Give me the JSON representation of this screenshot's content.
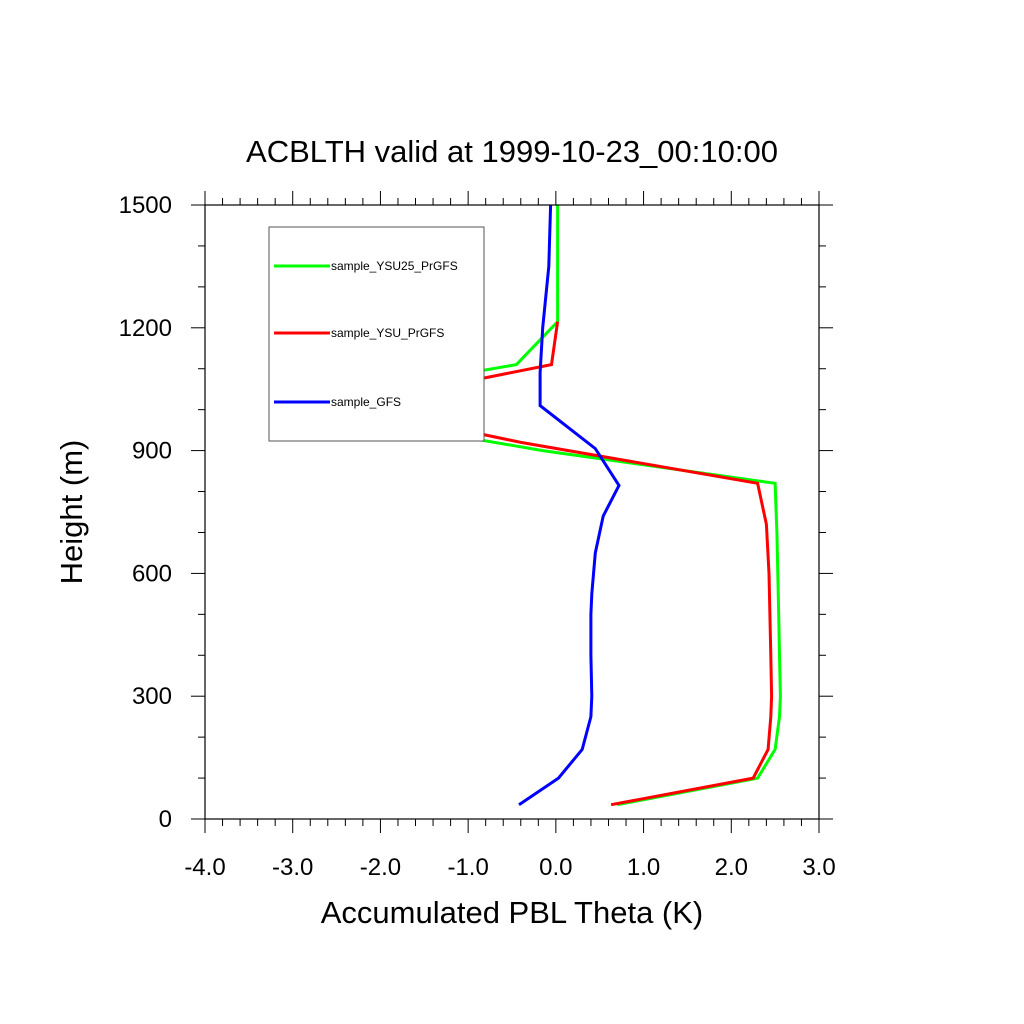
{
  "chart_data": {
    "type": "line",
    "title": "ACBLTH valid at 1999-10-23_00:10:00",
    "xlabel": "Accumulated PBL Theta (K)",
    "ylabel": "Height (m)",
    "xlim": [
      -4.0,
      3.0
    ],
    "ylim": [
      0,
      1500
    ],
    "xticks": [
      -4.0,
      -3.0,
      -2.0,
      -1.0,
      0.0,
      1.0,
      2.0,
      3.0
    ],
    "xtick_labels": [
      "-4.0",
      "-3.0",
      "-2.0",
      "-1.0",
      "0.0",
      "1.0",
      "2.0",
      "3.0"
    ],
    "yticks": [
      0,
      300,
      600,
      900,
      1200,
      1500
    ],
    "ytick_labels": [
      "0",
      "300",
      "600",
      "900",
      "1200",
      "1500"
    ],
    "grid": false,
    "legend": "top-left",
    "series": [
      {
        "name": "sample_YSU25_PrGFS",
        "color": "#00ff00",
        "points": [
          [
            0.7,
            35
          ],
          [
            2.3,
            100
          ],
          [
            2.5,
            170
          ],
          [
            2.55,
            250
          ],
          [
            2.56,
            300
          ],
          [
            2.55,
            400
          ],
          [
            2.54,
            500
          ],
          [
            2.53,
            600
          ],
          [
            2.52,
            700
          ],
          [
            2.5,
            820
          ],
          [
            -0.15,
            900
          ],
          [
            -3.15,
            1010
          ],
          [
            -0.45,
            1110
          ],
          [
            0.02,
            1215
          ],
          [
            0.02,
            1300
          ],
          [
            0.02,
            1500
          ]
        ]
      },
      {
        "name": "sample_YSU_PrGFS",
        "color": "#ff0000",
        "points": [
          [
            0.63,
            35
          ],
          [
            2.25,
            100
          ],
          [
            2.42,
            170
          ],
          [
            2.45,
            250
          ],
          [
            2.46,
            300
          ],
          [
            2.45,
            400
          ],
          [
            2.44,
            500
          ],
          [
            2.43,
            600
          ],
          [
            2.4,
            720
          ],
          [
            2.3,
            820
          ],
          [
            -0.4,
            920
          ],
          [
            -2.4,
            1010
          ],
          [
            -0.05,
            1110
          ],
          [
            0.02,
            1215
          ]
        ]
      },
      {
        "name": "sample_GFS",
        "color": "#0000ff",
        "points": [
          [
            -0.42,
            35
          ],
          [
            0.03,
            100
          ],
          [
            0.3,
            170
          ],
          [
            0.4,
            250
          ],
          [
            0.41,
            300
          ],
          [
            0.4,
            400
          ],
          [
            0.4,
            500
          ],
          [
            0.41,
            550
          ],
          [
            0.45,
            650
          ],
          [
            0.54,
            740
          ],
          [
            0.72,
            815
          ],
          [
            0.45,
            905
          ],
          [
            -0.18,
            1010
          ],
          [
            -0.18,
            1090
          ],
          [
            -0.15,
            1200
          ],
          [
            -0.08,
            1350
          ],
          [
            -0.06,
            1500
          ]
        ]
      }
    ]
  }
}
